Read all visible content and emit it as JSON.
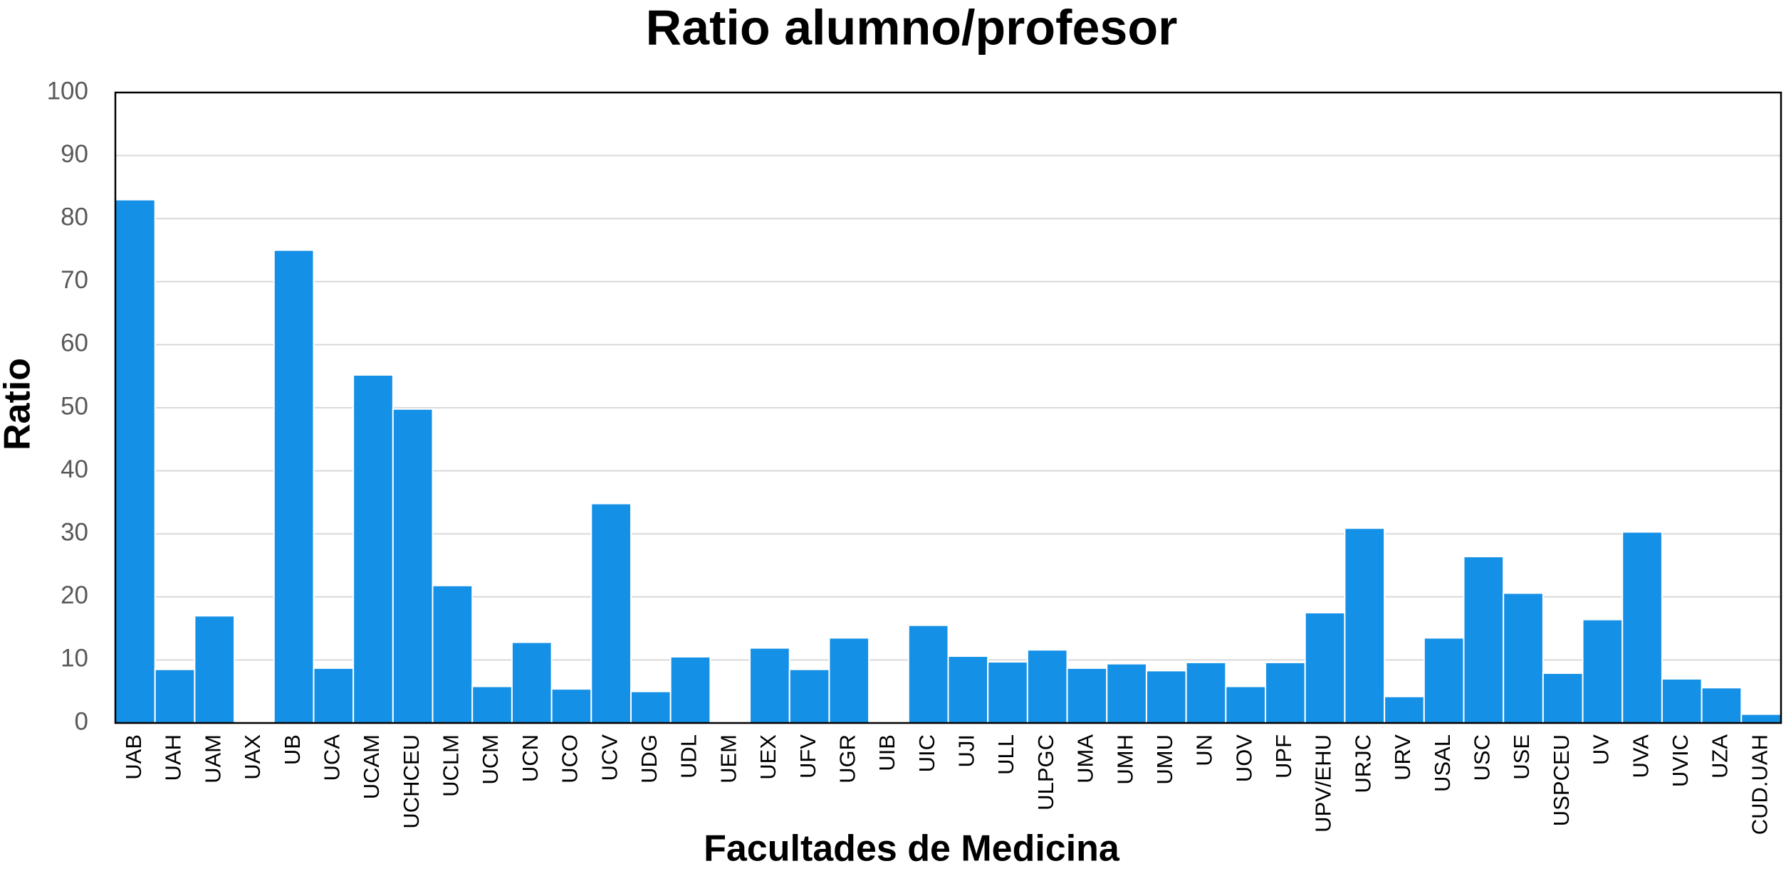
{
  "chart_data": {
    "type": "bar",
    "title": "Ratio alumno/profesor",
    "x_label": "Facultades de Medicina",
    "y_label": "Ratio",
    "categories": [
      "UAB",
      "UAH",
      "UAM",
      "UAX",
      "UB",
      "UCA",
      "UCAM",
      "UCHCEU",
      "UCLM",
      "UCM",
      "UCN",
      "UCO",
      "UCV",
      "UDG",
      "UDL",
      "UEM",
      "UEX",
      "UFV",
      "UGR",
      "UIB",
      "UIC",
      "UJI",
      "ULL",
      "ULPGC",
      "UMA",
      "UMH",
      "UMU",
      "UN",
      "UOV",
      "UPF",
      "UPV/EHU",
      "URJC",
      "URV",
      "USAL",
      "USC",
      "USE",
      "USPCEU",
      "UV",
      "UVA",
      "UVIC",
      "UZA",
      "CUD.UAH"
    ],
    "values": [
      83,
      8.5,
      17,
      null,
      75,
      8.7,
      55.2,
      49.8,
      21.8,
      5.8,
      12.8,
      5.4,
      34.8,
      5,
      10.5,
      null,
      11.9,
      8.5,
      13.5,
      null,
      15.5,
      10.6,
      9.7,
      11.6,
      8.7,
      9.4,
      8.3,
      9.6,
      5.8,
      9.6,
      17.5,
      30.9,
      4.2,
      13.5,
      26.4,
      20.6,
      7.9,
      16.4,
      30.3,
      7,
      5.6,
      1.4
    ],
    "color": "#1490e6",
    "ylim": [
      0,
      100
    ],
    "yticks": [
      0,
      10,
      20,
      30,
      40,
      50,
      60,
      70,
      80,
      90,
      100
    ],
    "grid": true
  }
}
